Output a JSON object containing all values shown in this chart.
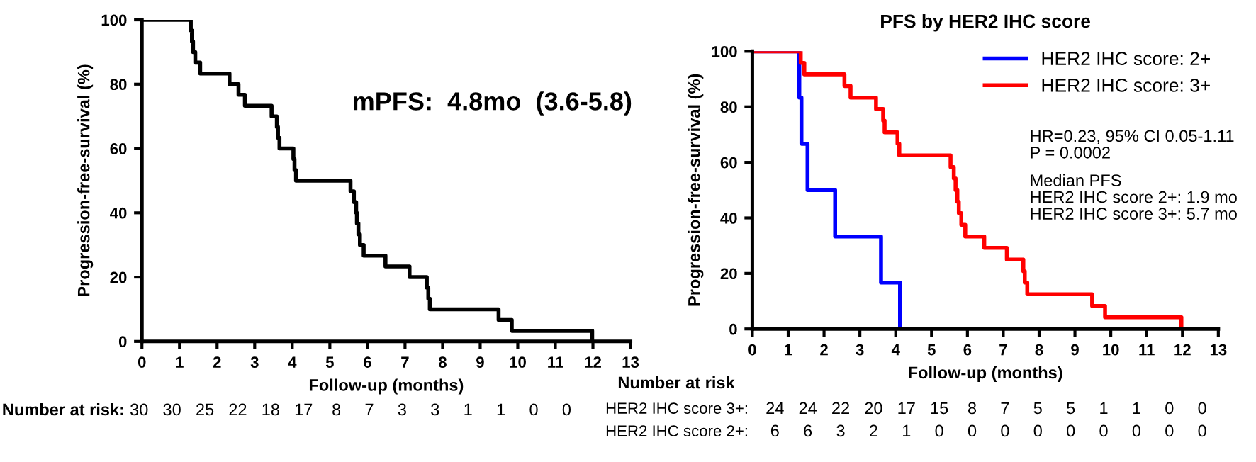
{
  "chart_data": [
    {
      "type": "step",
      "ylabel": "Progression-free-survival (%)",
      "xlabel": "Follow-up (months)",
      "xlim": [
        0,
        13
      ],
      "xticks": [
        0,
        1,
        2,
        3,
        4,
        5,
        6,
        7,
        8,
        9,
        10,
        11,
        12,
        13
      ],
      "ylim": [
        0,
        100
      ],
      "yticks": [
        0,
        20,
        40,
        60,
        80,
        100
      ],
      "grid": false,
      "legend": false,
      "series": [
        {
          "color": "#000000",
          "x": [
            0,
            1.3,
            1.33,
            1.36,
            1.42,
            1.55,
            2.33,
            2.57,
            2.74,
            3.45,
            3.59,
            3.62,
            3.66,
            4.03,
            4.06,
            4.1,
            5.55,
            5.64,
            5.7,
            5.72,
            5.76,
            5.8,
            5.9,
            6.48,
            7.12,
            7.58,
            7.62,
            7.66,
            9.49,
            9.84,
            11.98
          ],
          "values": [
            100,
            96.7,
            93.3,
            90,
            86.7,
            83.3,
            80,
            76.7,
            73.3,
            70,
            66.7,
            63.3,
            60,
            56.7,
            53.3,
            50,
            46.7,
            43.3,
            40,
            36.7,
            33.3,
            30,
            26.7,
            23.3,
            20,
            16.7,
            13.3,
            10,
            6.7,
            3.3,
            0
          ]
        }
      ],
      "annotations": [
        "mPFS:  4.8mo  (3.6-5.8)",
        "Number at risk:",
        "30",
        "30",
        "25",
        "22",
        "18",
        "17",
        "8",
        "7",
        "3",
        "3",
        "1",
        "1",
        "0",
        "0"
      ]
    },
    {
      "type": "step",
      "title": "PFS by HER2 IHC score",
      "ylabel": "Progression-free-survival (%)",
      "xlabel": "Follow-up (months)",
      "xlim": [
        0,
        13
      ],
      "xticks": [
        0,
        1,
        2,
        3,
        4,
        5,
        6,
        7,
        8,
        9,
        10,
        11,
        12,
        13
      ],
      "ylim": [
        0,
        100
      ],
      "yticks": [
        0,
        20,
        40,
        60,
        80,
        100
      ],
      "grid": false,
      "legend": "top right",
      "series": [
        {
          "name": "HER2 IHC score: 2+",
          "color": "#0000ff",
          "x": [
            0,
            1.31,
            1.37,
            1.54,
            2.31,
            3.59,
            4.12
          ],
          "values": [
            100,
            83.3,
            66.7,
            50,
            33.3,
            16.7,
            0
          ]
        },
        {
          "name": "HER2 IHC score: 3+",
          "color": "#ff0000",
          "x": [
            0,
            1.35,
            1.45,
            2.57,
            2.74,
            3.45,
            3.65,
            3.69,
            4.05,
            4.1,
            5.53,
            5.62,
            5.67,
            5.72,
            5.76,
            5.83,
            5.94,
            6.47,
            7.1,
            7.56,
            7.6,
            7.67,
            9.48,
            9.84,
            11.97
          ],
          "values": [
            100,
            95.8,
            91.7,
            87.5,
            83.3,
            79.2,
            75,
            70.8,
            66.7,
            62.5,
            58.3,
            54.2,
            50,
            45.8,
            41.7,
            37.5,
            33.3,
            29.2,
            25,
            20.8,
            16.7,
            12.5,
            8.3,
            4.2,
            0
          ]
        }
      ],
      "annotations": [
        "HR=0.23, 95% CI 0.05-1.11",
        "P = 0.0002",
        "Median PFS",
        "HER2 IHC score 2+: 1.9 mo",
        "HER2 IHC score 3+: 5.7 mo",
        "Number at risk",
        "HER2 IHC score 3+:",
        "24",
        "24",
        "22",
        "20",
        "17",
        "15",
        "8",
        "7",
        "5",
        "5",
        "1",
        "1",
        "0",
        "0",
        "HER2 IHC score 2+:",
        "6",
        "6",
        "3",
        "2",
        "1",
        "0",
        "0",
        "0",
        "0",
        "0",
        "0",
        "0",
        "0",
        "0"
      ]
    }
  ]
}
